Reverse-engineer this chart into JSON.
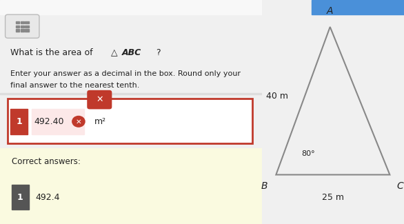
{
  "bg_color": "#f0f0f0",
  "left_panel_bg": "#ffffff",
  "right_panel_bg": "#ffffff",
  "answer_value": "492.40",
  "answer_unit": "m²",
  "correct_label": "Correct answers:",
  "correct_value": "492.4",
  "badge_color_wrong": "#c0392b",
  "badge_color_correct": "#555555",
  "input_border_color": "#c0392b",
  "answer_bg_color": "#fce8e8",
  "correct_section_bg": "#fafae0",
  "label_A": "A",
  "label_B": "B",
  "label_C": "C",
  "side_label_AB": "40 m",
  "side_label_BC": "25 m",
  "angle_label": "80°",
  "triangle_color": "#888888",
  "text_color": "#222222",
  "top_bar_color": "#4a90d9",
  "calc_box_color": "#e8e8e8",
  "calc_border_color": "#bbbbbb",
  "panel_divider": "#dddddd"
}
